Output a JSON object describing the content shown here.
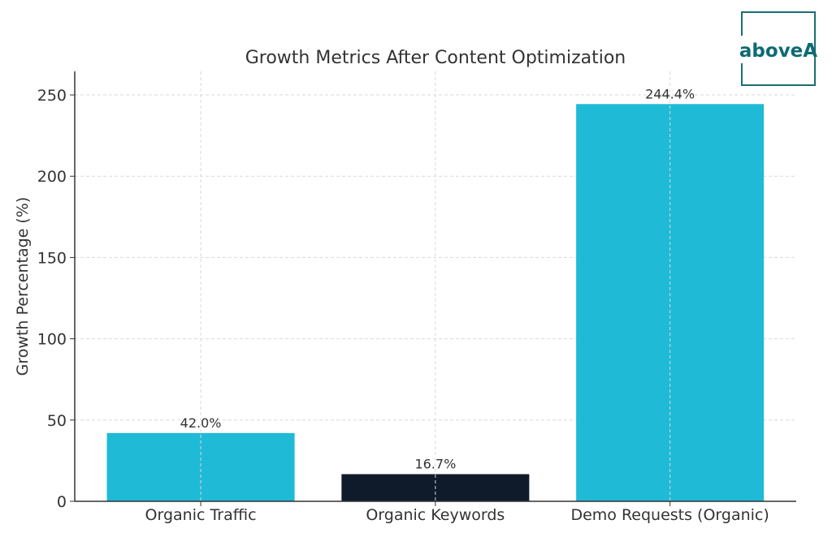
{
  "chart_data": {
    "type": "bar",
    "title": "Growth Metrics After Content Optimization",
    "xlabel": "",
    "ylabel": "Growth Percentage (%)",
    "categories": [
      "Organic Traffic",
      "Organic Keywords",
      "Demo Requests (Organic)"
    ],
    "values": [
      42.0,
      16.7,
      244.4
    ],
    "data_labels": [
      "42.0%",
      "16.7%",
      "244.4%"
    ],
    "bar_colors": [
      "#1fbad6",
      "#0f1b2a",
      "#1fbad6"
    ],
    "ylim": [
      0,
      264.5
    ],
    "yticks": [
      0,
      50,
      100,
      150,
      200,
      250
    ],
    "grid": true,
    "legend": "none"
  },
  "logo": {
    "text": "aboveA",
    "color": "#0d6b72"
  }
}
